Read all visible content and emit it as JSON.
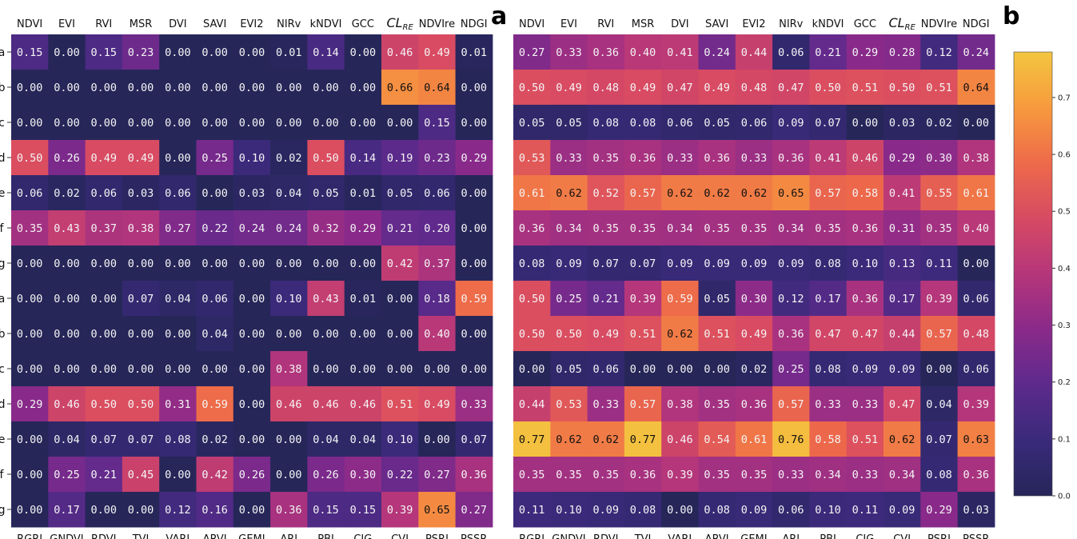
{
  "panel_labels": [
    "a",
    "b"
  ],
  "colorscale": {
    "name": "plasma-like",
    "stops": [
      "#262659",
      "#3a2a7a",
      "#5d2a8c",
      "#8a2a8a",
      "#b5367a",
      "#d74a63",
      "#ee6a4a",
      "#f79a3e",
      "#f3c63f"
    ]
  },
  "chart_data": [
    {
      "type": "heatmap",
      "panel": "left",
      "top_labels": [
        "NDVI",
        "EVI",
        "RVI",
        "MSR",
        "DVI",
        "SAVI",
        "EVI2",
        "NIRv",
        "kNDVI",
        "GCC",
        "CL_RE",
        "NDVIre",
        "NDGI"
      ],
      "bottom_labels": [
        "RGRI",
        "GNDVI",
        "RDVI",
        "TVI",
        "VARI",
        "ARVI",
        "GEMI",
        "ARI",
        "PBI",
        "CIG",
        "CVI",
        "PSRI",
        "PSSR"
      ],
      "row_labels": [
        "a",
        "b",
        "c",
        "d",
        "e",
        "f",
        "g",
        "a",
        "b",
        "c",
        "d",
        "e",
        "f",
        "g"
      ],
      "values": [
        [
          0.15,
          0.0,
          0.15,
          0.23,
          0.0,
          0.0,
          0.0,
          0.01,
          0.14,
          0.0,
          0.46,
          0.49,
          0.01
        ],
        [
          0.0,
          0.0,
          0.0,
          0.0,
          0.0,
          0.0,
          0.0,
          0.0,
          0.0,
          0.0,
          0.66,
          0.64,
          0.0
        ],
        [
          0.0,
          0.0,
          0.0,
          0.0,
          0.0,
          0.0,
          0.0,
          0.0,
          0.0,
          0.0,
          0.0,
          0.15,
          0.0
        ],
        [
          0.5,
          0.26,
          0.49,
          0.49,
          0.0,
          0.25,
          0.1,
          0.02,
          0.5,
          0.14,
          0.19,
          0.23,
          0.29
        ],
        [
          0.06,
          0.02,
          0.06,
          0.03,
          0.06,
          0.0,
          0.03,
          0.04,
          0.05,
          0.01,
          0.05,
          0.06,
          0.0
        ],
        [
          0.35,
          0.43,
          0.37,
          0.38,
          0.27,
          0.22,
          0.24,
          0.24,
          0.32,
          0.29,
          0.21,
          0.2,
          0.0
        ],
        [
          0.0,
          0.0,
          0.0,
          0.0,
          0.0,
          0.0,
          0.0,
          0.0,
          0.0,
          0.0,
          0.42,
          0.37,
          0.0
        ],
        [
          0.0,
          0.0,
          0.0,
          0.07,
          0.04,
          0.06,
          0.0,
          0.1,
          0.43,
          0.01,
          0.0,
          0.18,
          0.59
        ],
        [
          0.0,
          0.0,
          0.0,
          0.0,
          0.0,
          0.04,
          0.0,
          0.0,
          0.0,
          0.0,
          0.0,
          0.4,
          0.0
        ],
        [
          0.0,
          0.0,
          0.0,
          0.0,
          0.0,
          0.0,
          0.0,
          0.38,
          0.0,
          0.0,
          0.0,
          0.0,
          0.0
        ],
        [
          0.29,
          0.46,
          0.5,
          0.5,
          0.31,
          0.59,
          0.0,
          0.46,
          0.46,
          0.46,
          0.51,
          0.49,
          0.33
        ],
        [
          0.0,
          0.04,
          0.07,
          0.07,
          0.08,
          0.02,
          0.0,
          0.0,
          0.04,
          0.04,
          0.1,
          0.0,
          0.07
        ],
        [
          0.0,
          0.25,
          0.21,
          0.45,
          0.0,
          0.42,
          0.26,
          0.0,
          0.26,
          0.3,
          0.22,
          0.27,
          0.36
        ],
        [
          0.0,
          0.17,
          0.0,
          0.0,
          0.12,
          0.16,
          0.0,
          0.36,
          0.15,
          0.15,
          0.39,
          0.65,
          0.27
        ]
      ]
    },
    {
      "type": "heatmap",
      "panel": "right",
      "top_labels": [
        "NDVI",
        "EVI",
        "RVI",
        "MSR",
        "DVI",
        "SAVI",
        "EVI2",
        "NIRv",
        "kNDVI",
        "GCC",
        "CL_RE",
        "NDVIre",
        "NDGI"
      ],
      "bottom_labels": [
        "RGRI",
        "GNDVI",
        "RDVI",
        "TVI",
        "VARI",
        "ARVI",
        "GEMI",
        "ARI",
        "PBI",
        "CIG",
        "CVI",
        "PSRI",
        "PSSR"
      ],
      "values": [
        [
          0.27,
          0.33,
          0.36,
          0.4,
          0.41,
          0.24,
          0.44,
          0.06,
          0.21,
          0.29,
          0.28,
          0.12,
          0.24
        ],
        [
          0.5,
          0.49,
          0.48,
          0.49,
          0.47,
          0.49,
          0.48,
          0.47,
          0.5,
          0.51,
          0.5,
          0.51,
          0.64
        ],
        [
          0.05,
          0.05,
          0.08,
          0.08,
          0.06,
          0.05,
          0.06,
          0.09,
          0.07,
          0.0,
          0.03,
          0.02,
          0.0
        ],
        [
          0.53,
          0.33,
          0.35,
          0.36,
          0.33,
          0.36,
          0.33,
          0.36,
          0.41,
          0.46,
          0.29,
          0.3,
          0.38
        ],
        [
          0.61,
          0.62,
          0.52,
          0.57,
          0.62,
          0.62,
          0.62,
          0.65,
          0.57,
          0.58,
          0.41,
          0.55,
          0.61
        ],
        [
          0.36,
          0.34,
          0.35,
          0.35,
          0.34,
          0.35,
          0.35,
          0.34,
          0.35,
          0.36,
          0.31,
          0.35,
          0.4
        ],
        [
          0.08,
          0.09,
          0.07,
          0.07,
          0.09,
          0.09,
          0.09,
          0.09,
          0.08,
          0.1,
          0.13,
          0.11,
          0.0
        ],
        [
          0.5,
          0.25,
          0.21,
          0.39,
          0.59,
          0.05,
          0.3,
          0.12,
          0.17,
          0.36,
          0.17,
          0.39,
          0.06
        ],
        [
          0.5,
          0.5,
          0.49,
          0.51,
          0.62,
          0.51,
          0.49,
          0.36,
          0.47,
          0.47,
          0.44,
          0.57,
          0.48
        ],
        [
          0.0,
          0.05,
          0.06,
          0.0,
          0.0,
          0.0,
          0.02,
          0.25,
          0.08,
          0.09,
          0.09,
          0.0,
          0.06
        ],
        [
          0.44,
          0.53,
          0.33,
          0.57,
          0.38,
          0.35,
          0.36,
          0.57,
          0.33,
          0.33,
          0.47,
          0.04,
          0.39
        ],
        [
          0.77,
          0.62,
          0.62,
          0.77,
          0.46,
          0.54,
          0.61,
          0.76,
          0.58,
          0.51,
          0.62,
          0.07,
          0.63
        ],
        [
          0.35,
          0.35,
          0.35,
          0.36,
          0.39,
          0.35,
          0.35,
          0.33,
          0.34,
          0.33,
          0.34,
          0.08,
          0.36
        ],
        [
          0.11,
          0.1,
          0.09,
          0.08,
          0.0,
          0.08,
          0.09,
          0.06,
          0.1,
          0.11,
          0.09,
          0.29,
          0.03
        ]
      ]
    }
  ],
  "colorbar": {
    "min": 0.0,
    "max": 0.78,
    "ticks": [
      "0.0",
      "0.1",
      "0.2",
      "0.3",
      "0.4",
      "0.5",
      "0.6",
      "0.7"
    ]
  }
}
